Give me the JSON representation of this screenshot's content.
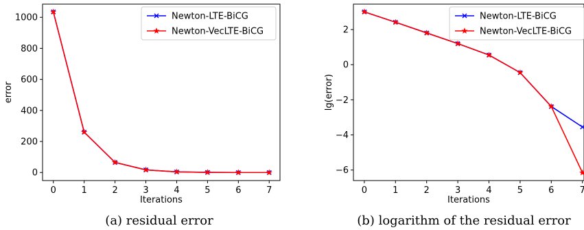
{
  "chart_data": [
    {
      "type": "line",
      "caption": "(a) residual error",
      "xlabel": "Iterations",
      "ylabel": "error",
      "xlim": [
        -0.35,
        7.35
      ],
      "ylim": [
        -52,
        1085
      ],
      "xticks": [
        0,
        1,
        2,
        3,
        4,
        5,
        6,
        7
      ],
      "yticks": [
        0,
        200,
        400,
        600,
        800,
        1000
      ],
      "legend_position": "top-right",
      "grid": false,
      "series": [
        {
          "name": "Newton-LTE-BiCG",
          "color": "#0000ff",
          "marker": "x",
          "x": [
            0,
            1,
            2,
            3,
            4,
            5,
            6,
            7
          ],
          "y": [
            1035,
            260,
            65,
            17,
            4,
            1,
            0,
            0
          ]
        },
        {
          "name": "Newton-VecLTE-BiCG",
          "color": "#ff0000",
          "marker": "*",
          "x": [
            0,
            1,
            2,
            3,
            4,
            5,
            6,
            7
          ],
          "y": [
            1035,
            260,
            65,
            17,
            4,
            1,
            0,
            0
          ]
        }
      ]
    },
    {
      "type": "line",
      "caption": "(b) logarithm of the residual error",
      "xlabel": "Iterations",
      "ylabel": "lg(error)",
      "xlim": [
        -0.35,
        7.05
      ],
      "ylim": [
        -6.6,
        3.45
      ],
      "xticks": [
        0,
        1,
        2,
        3,
        4,
        5,
        6,
        7
      ],
      "yticks": [
        -6,
        -4,
        -2,
        0,
        2
      ],
      "yticklabels": [
        "−6",
        "−4",
        "−2",
        "0",
        "2"
      ],
      "legend_position": "top-right",
      "grid": false,
      "series": [
        {
          "name": "Newton-LTE-BiCG",
          "color": "#0000ff",
          "marker": "x",
          "x": [
            0,
            1,
            2,
            3,
            4,
            5,
            6,
            7
          ],
          "y": [
            3.01,
            2.42,
            1.81,
            1.2,
            0.55,
            -0.45,
            -2.38,
            -3.55
          ]
        },
        {
          "name": "Newton-VecLTE-BiCG",
          "color": "#ff0000",
          "marker": "*",
          "x": [
            0,
            1,
            2,
            3,
            4,
            5,
            6,
            7
          ],
          "y": [
            3.01,
            2.42,
            1.81,
            1.2,
            0.55,
            -0.45,
            -2.38,
            -6.15
          ]
        }
      ]
    }
  ]
}
